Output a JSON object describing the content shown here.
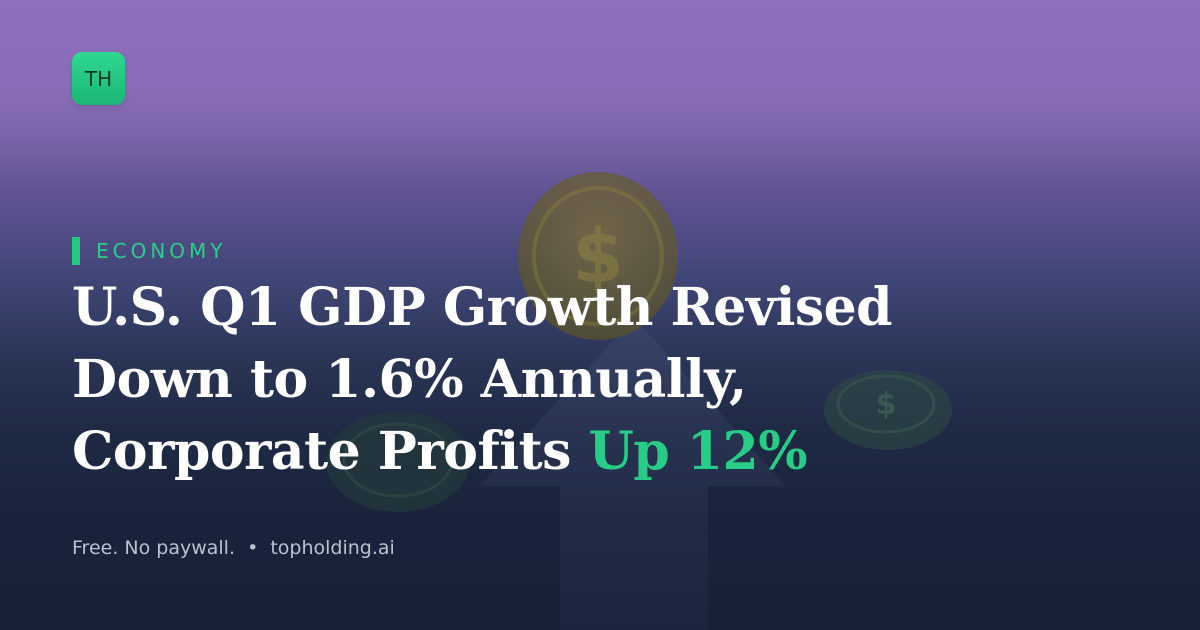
{
  "brand": {
    "logo_text": "TH",
    "logo_color": "#22c97f"
  },
  "category": {
    "label": "ECONOMY",
    "accent_color": "#22c97f"
  },
  "headline": {
    "line1": "U.S. Q1 GDP Growth Revised",
    "line2": "Down to 1.6% Annually,",
    "line3_main": "Corporate Profits ",
    "line3_accent": "Up 12%",
    "text_color": "#ffffff",
    "accent_color": "#27cc86"
  },
  "footer": {
    "tagline": "Free. No paywall.",
    "separator": "•",
    "site": "topholding.ai"
  },
  "background": {
    "top_color": "#8d6fbd",
    "bottom_color": "#172036",
    "illustration": [
      "dollar-coin-icon",
      "up-arrow-icon",
      "small-coin-icon"
    ]
  }
}
